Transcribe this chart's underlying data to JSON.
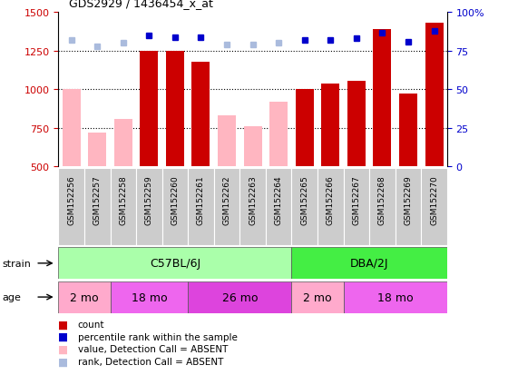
{
  "title": "GDS2929 / 1436454_x_at",
  "samples": [
    "GSM152256",
    "GSM152257",
    "GSM152258",
    "GSM152259",
    "GSM152260",
    "GSM152261",
    "GSM152262",
    "GSM152263",
    "GSM152264",
    "GSM152265",
    "GSM152266",
    "GSM152267",
    "GSM152268",
    "GSM152269",
    "GSM152270"
  ],
  "count_values": [
    null,
    null,
    null,
    1250,
    1250,
    1180,
    null,
    null,
    null,
    1005,
    1040,
    1055,
    1390,
    975,
    1430
  ],
  "count_absent": [
    1005,
    720,
    810,
    null,
    null,
    null,
    830,
    760,
    920,
    null,
    null,
    null,
    null,
    null,
    null
  ],
  "rank_values": [
    82,
    78,
    80,
    85,
    84,
    84,
    79,
    79,
    80,
    82,
    82,
    83,
    87,
    81,
    88
  ],
  "rank_absent": [
    true,
    true,
    true,
    false,
    false,
    false,
    true,
    true,
    true,
    false,
    false,
    false,
    false,
    false,
    false
  ],
  "ylim_left": [
    500,
    1500
  ],
  "ylim_right": [
    0,
    100
  ],
  "yticks_left": [
    500,
    750,
    1000,
    1250,
    1500
  ],
  "yticks_right": [
    0,
    25,
    50,
    75,
    100
  ],
  "strain_groups": [
    {
      "label": "C57BL/6J",
      "start": 0,
      "end": 9,
      "color": "#AAFFAA"
    },
    {
      "label": "DBA/2J",
      "start": 9,
      "end": 15,
      "color": "#44EE44"
    }
  ],
  "age_groups": [
    {
      "label": "2 mo",
      "start": 0,
      "end": 2,
      "color": "#FFAACC"
    },
    {
      "label": "18 mo",
      "start": 2,
      "end": 5,
      "color": "#EE66EE"
    },
    {
      "label": "26 mo",
      "start": 5,
      "end": 9,
      "color": "#DD44DD"
    },
    {
      "label": "2 mo",
      "start": 9,
      "end": 11,
      "color": "#FFAACC"
    },
    {
      "label": "18 mo",
      "start": 11,
      "end": 15,
      "color": "#EE66EE"
    }
  ],
  "bar_color_present": "#CC0000",
  "bar_color_absent": "#FFB6C1",
  "dot_color_present": "#0000CC",
  "dot_color_absent": "#AABBDD",
  "bar_width": 0.7,
  "background_color": "#FFFFFF",
  "left_axis_color": "#CC0000",
  "right_axis_color": "#0000CC",
  "xticklabel_bg": "#CCCCCC",
  "legend_items": [
    {
      "color": "#CC0000",
      "label": "count"
    },
    {
      "color": "#0000CC",
      "label": "percentile rank within the sample"
    },
    {
      "color": "#FFB6C1",
      "label": "value, Detection Call = ABSENT"
    },
    {
      "color": "#AABBDD",
      "label": "rank, Detection Call = ABSENT"
    }
  ]
}
